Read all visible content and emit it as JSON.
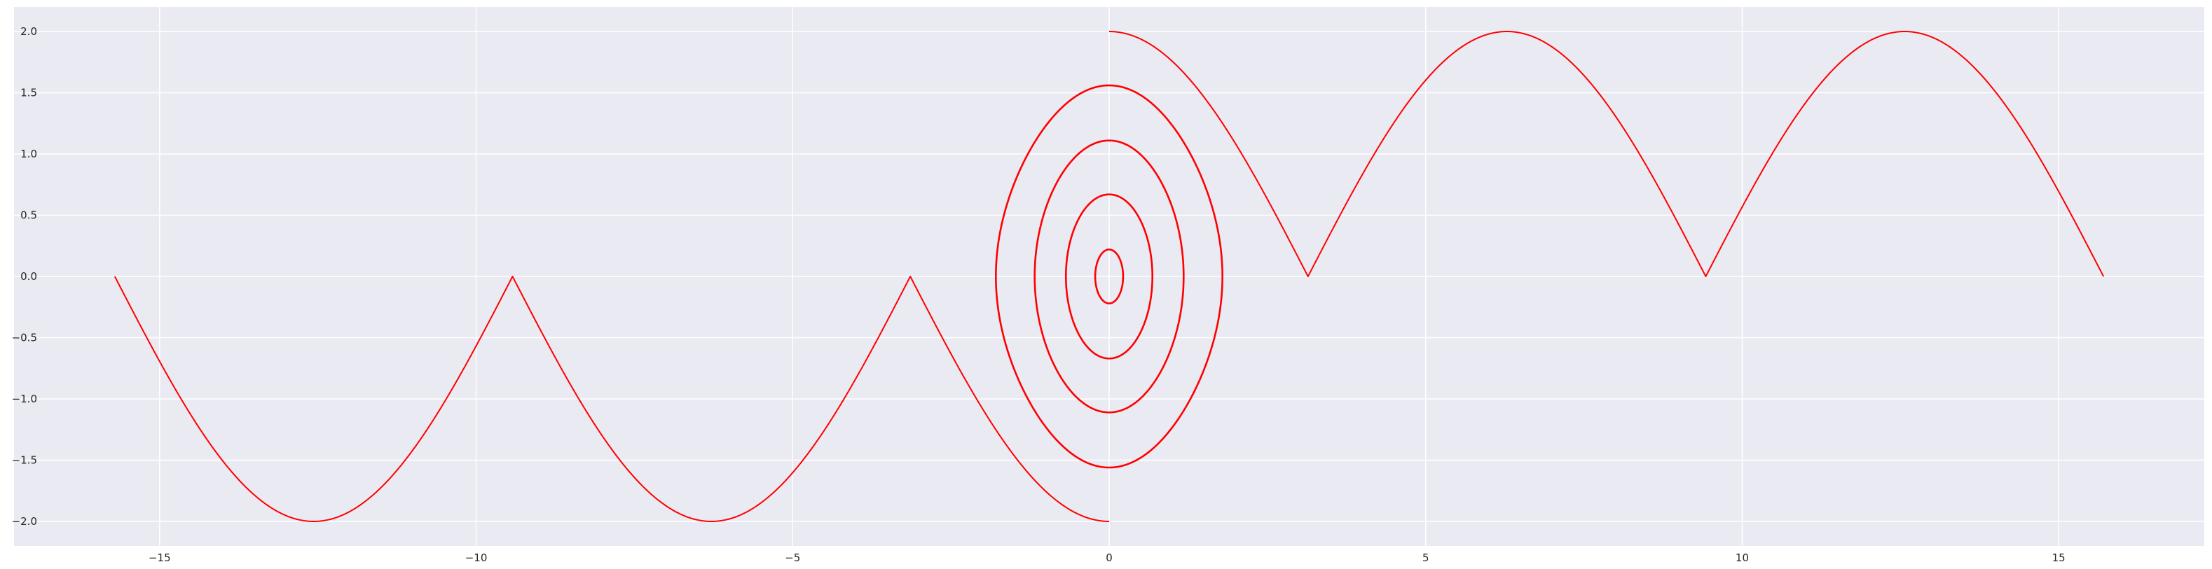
{
  "chart_data": {
    "type": "line",
    "title": "",
    "xlabel": "",
    "ylabel": "",
    "xlim": [
      -17.3,
      17.3
    ],
    "ylim": [
      -2.2,
      2.2
    ],
    "xticks": [
      -15,
      -10,
      -5,
      0,
      5,
      10,
      15
    ],
    "xtick_labels": [
      "−15",
      "−10",
      "−5",
      "0",
      "5",
      "10",
      "15"
    ],
    "yticks": [
      -2.0,
      -1.5,
      -1.0,
      -0.5,
      0.0,
      0.5,
      1.0,
      1.5,
      2.0
    ],
    "ytick_labels": [
      "−2.0",
      "−1.5",
      "−1.0",
      "−0.5",
      "0.0",
      "0.5",
      "1.0",
      "1.5",
      "2.0"
    ],
    "grid": true,
    "colors": {
      "background": "#eaeaf2",
      "grid": "#ffffff",
      "line": "#ff0000"
    },
    "series": [
      {
        "kind": "pendulum_separatrix_left",
        "x_range": [
          -15.708,
          0
        ],
        "points": 600,
        "formula": "y = -2*|cos(x/2)|"
      },
      {
        "kind": "pendulum_separatrix_right",
        "x_range": [
          0,
          15.708
        ],
        "points": 600,
        "formula": "y = 2*|cos(x/2)|"
      },
      {
        "kind": "pendulum_orbit",
        "energy_amplitude": 0.22
      },
      {
        "kind": "pendulum_orbit",
        "energy_amplitude": 0.67
      },
      {
        "kind": "pendulum_orbit",
        "energy_amplitude": 1.11
      },
      {
        "kind": "pendulum_orbit",
        "energy_amplitude": 1.56
      }
    ]
  }
}
